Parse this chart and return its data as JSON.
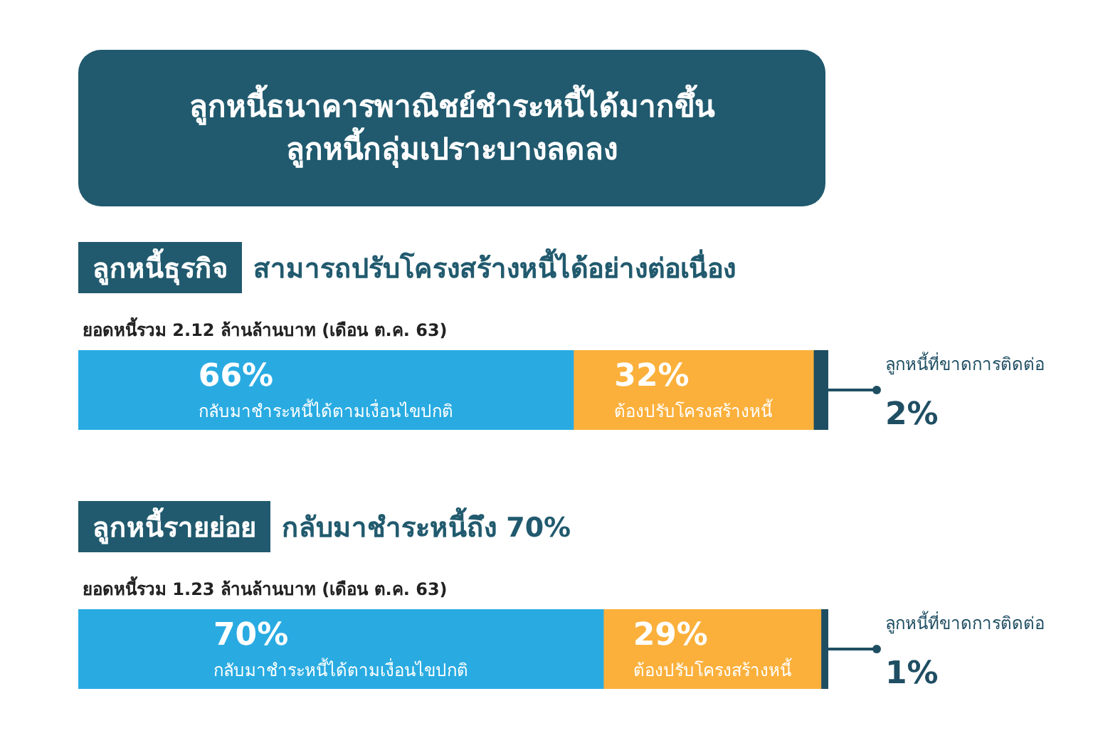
{
  "chart_data": [
    {
      "type": "bar",
      "title": "ลูกหนี้ธนาคารพาณิชย์ชำระหนี้ได้มากขึ้น\nลูกหนี้กลุ่มเปราะบางลดลง",
      "annotations": [
        "ลูกหนี้ธุรกิจ",
        "สามารถปรับโครงสร้างหนี้ได้อย่างต่อเนื่อง",
        "ยอดหนี้รวม 2.12 ล้านล้านบาท (เดือน ต.ค. 63)"
      ],
      "orientation": "horizontal",
      "stacked": true,
      "categories": [
        null
      ],
      "xlim": [
        0,
        100
      ],
      "tick_labels": false,
      "series": [
        {
          "name": "กลับมาชำระหนี้ได้ตามเงื่อนไขปกติ",
          "color": "#29abe2",
          "values": [
            66
          ],
          "value_labels": [
            "66%"
          ]
        },
        {
          "name": "ต้องปรับโครงสร้างหนี้",
          "color": "#fbb03b",
          "values": [
            32
          ],
          "value_labels": [
            "32%"
          ]
        },
        {
          "name": "ลูกหนี้ที่ขาดการติดต่อ",
          "color": "#1f4e63",
          "values": [
            2
          ],
          "value_labels": [
            "2%"
          ]
        }
      ]
    },
    {
      "type": "bar",
      "annotations": [
        "ลูกหนี้รายย่อย",
        "กลับมาชำระหนี้ถึง 70%",
        "ยอดหนี้รวม 1.23 ล้านล้านบาท (เดือน ต.ค. 63)"
      ],
      "orientation": "horizontal",
      "stacked": true,
      "categories": [
        null
      ],
      "xlim": [
        0,
        100
      ],
      "tick_labels": false,
      "series": [
        {
          "name": "กลับมาชำระหนี้ได้ตามเงื่อนไขปกติ",
          "color": "#29abe2",
          "values": [
            70
          ],
          "value_labels": [
            "70%"
          ]
        },
        {
          "name": "ต้องปรับโครงสร้างหนี้",
          "color": "#fbb03b",
          "values": [
            29
          ],
          "value_labels": [
            "29%"
          ]
        },
        {
          "name": "ลูกหนี้ที่ขาดการติดต่อ",
          "color": "#1f4e63",
          "values": [
            1
          ],
          "value_labels": [
            "1%"
          ]
        }
      ]
    }
  ]
}
